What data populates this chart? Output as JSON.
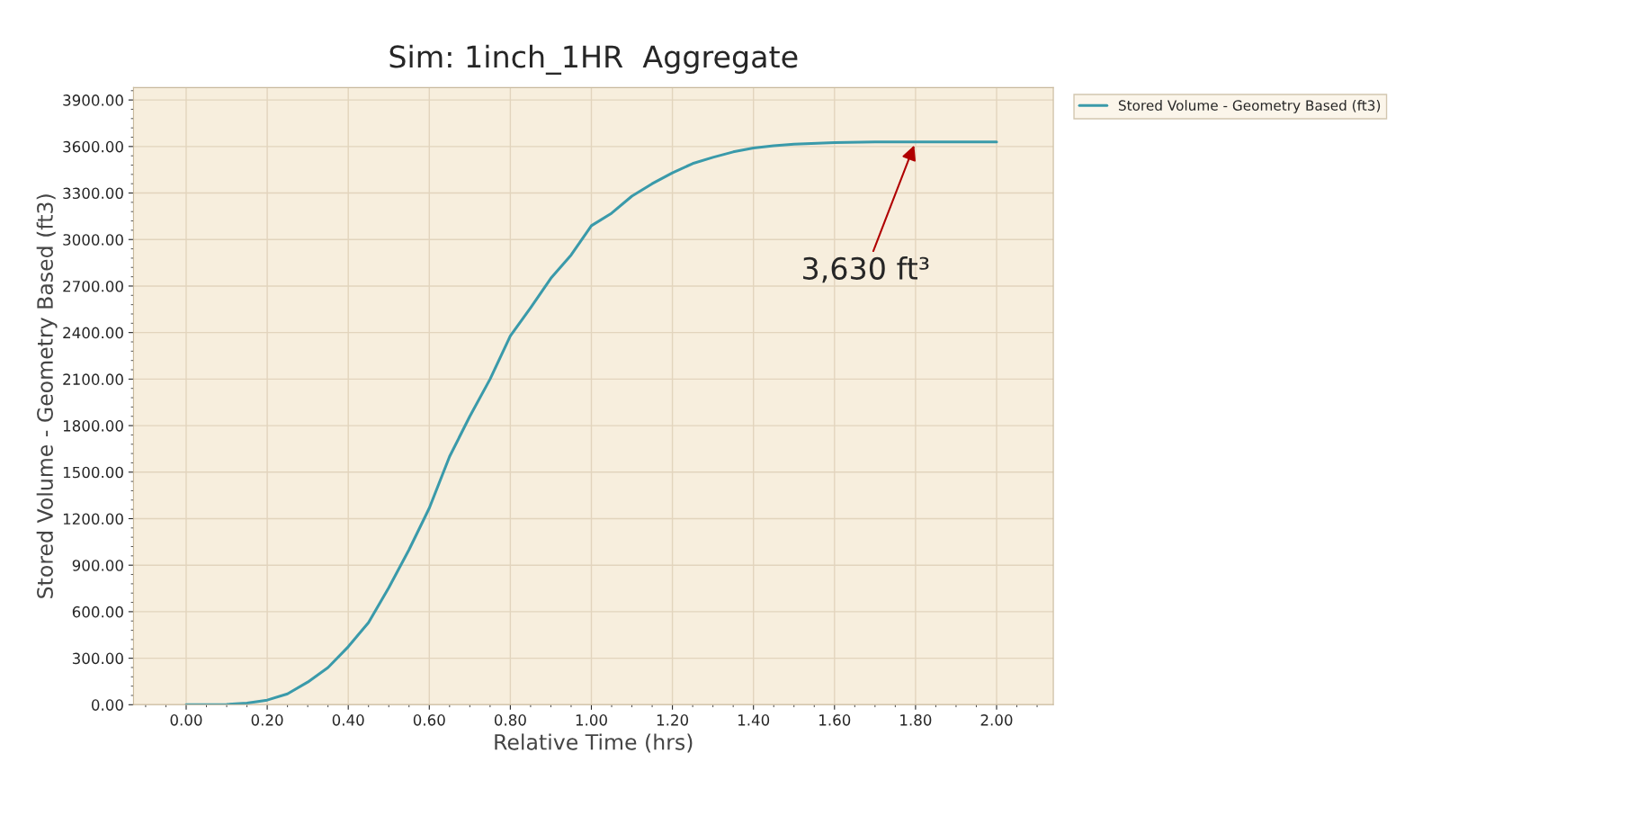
{
  "chart_data": {
    "type": "line",
    "title": "Sim: 1inch_1HR  Aggregate",
    "xlabel": "Relative Time (hrs)",
    "ylabel": "Stored Volume - Geometry Based (ft3)",
    "x": [
      0,
      0.05,
      0.1,
      0.15,
      0.2,
      0.25,
      0.3,
      0.35,
      0.4,
      0.45,
      0.5,
      0.55,
      0.6,
      0.65,
      0.7,
      0.75,
      0.8,
      0.85,
      0.9,
      0.95,
      1.0,
      1.05,
      1.1,
      1.15,
      1.2,
      1.25,
      1.3,
      1.35,
      1.4,
      1.45,
      1.5,
      1.6,
      1.7,
      1.8,
      1.9,
      2.0
    ],
    "series": [
      {
        "name": "Stored Volume - Geometry Based (ft3)",
        "color": "#3a9aaa",
        "values": [
          0,
          0,
          2,
          10,
          30,
          70,
          146,
          240,
          374,
          530,
          755,
          1000,
          1268,
          1600,
          1860,
          2100,
          2378,
          2560,
          2750,
          2900,
          3089,
          3170,
          3280,
          3360,
          3430,
          3490,
          3530,
          3565,
          3590,
          3605,
          3615,
          3625,
          3630,
          3630,
          3630,
          3630
        ]
      }
    ],
    "xlim": [
      -0.13,
      2.14
    ],
    "ylim": [
      0,
      3980
    ],
    "xticks": [
      {
        "value": 0,
        "label": "0.00"
      },
      {
        "value": 0.2,
        "label": "0.20"
      },
      {
        "value": 0.4,
        "label": "0.40"
      },
      {
        "value": 0.6,
        "label": "0.60"
      },
      {
        "value": 0.8,
        "label": "0.80"
      },
      {
        "value": 1.0,
        "label": "1.00"
      },
      {
        "value": 1.2,
        "label": "1.20"
      },
      {
        "value": 1.4,
        "label": "1.40"
      },
      {
        "value": 1.6,
        "label": "1.60"
      },
      {
        "value": 1.8,
        "label": "1.80"
      },
      {
        "value": 2.0,
        "label": "2.00"
      }
    ],
    "yticks": [
      {
        "value": 0,
        "label": "0.00"
      },
      {
        "value": 300,
        "label": "300.00"
      },
      {
        "value": 600,
        "label": "600.00"
      },
      {
        "value": 900,
        "label": "900.00"
      },
      {
        "value": 1200,
        "label": "1200.00"
      },
      {
        "value": 1500,
        "label": "1500.00"
      },
      {
        "value": 1800,
        "label": "1800.00"
      },
      {
        "value": 2100,
        "label": "2100.00"
      },
      {
        "value": 2400,
        "label": "2400.00"
      },
      {
        "value": 2700,
        "label": "2700.00"
      },
      {
        "value": 3000,
        "label": "3000.00"
      },
      {
        "value": 3300,
        "label": "3300.00"
      },
      {
        "value": 3600,
        "label": "3600.00"
      },
      {
        "value": 3900,
        "label": "3900.00"
      }
    ],
    "annotations": [
      {
        "text": "3,630 ft³",
        "x": 1.8,
        "y": 3630
      }
    ],
    "grid": true,
    "legend": "top right",
    "marker": "none",
    "line_style": "solid"
  }
}
